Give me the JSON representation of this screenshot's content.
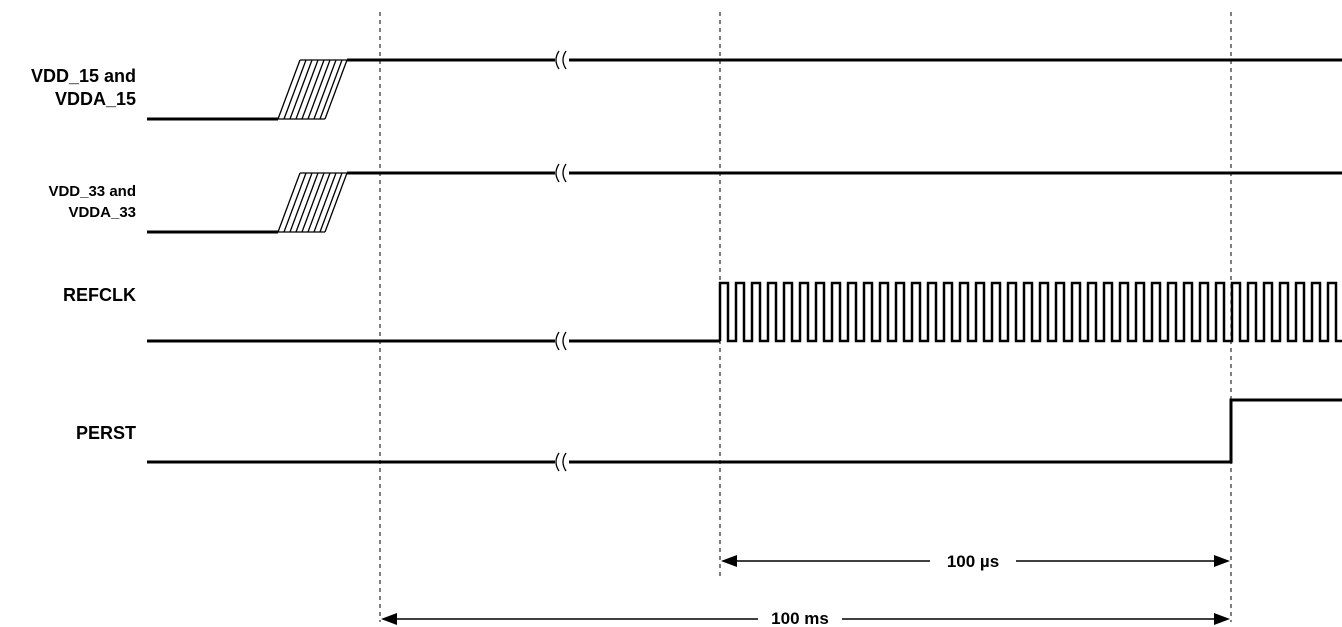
{
  "signals": [
    {
      "id": "vdd15",
      "label_lines": [
        "VDD_15 and",
        "VDDA_15"
      ],
      "waveform": "power-ramp"
    },
    {
      "id": "vdd33",
      "label_lines": [
        "VDD_33 and",
        "VDDA_33"
      ],
      "waveform": "power-ramp"
    },
    {
      "id": "refclk",
      "label_lines": [
        "REFCLK"
      ],
      "waveform": "clock"
    },
    {
      "id": "perst",
      "label_lines": [
        "PERST"
      ],
      "waveform": "step-high"
    }
  ],
  "dimensions": [
    {
      "id": "refclk-to-perst",
      "label": "100 µs"
    },
    {
      "id": "power-to-perst",
      "label": "100 ms"
    }
  ]
}
